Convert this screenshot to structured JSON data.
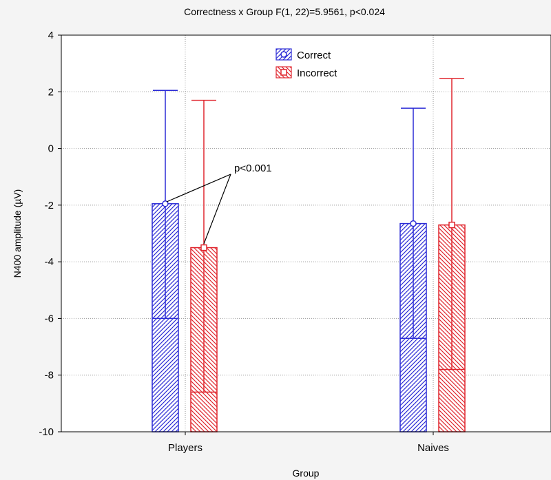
{
  "chart_data": {
    "type": "bar",
    "title": "Correctness x Group  F(1, 22)=5.9561, p<0.024",
    "xlabel": "Group",
    "ylabel": "N400 amplitude (µV)",
    "ylim": [
      -10,
      4
    ],
    "yticks": [
      "4",
      "2",
      "0",
      "-2",
      "-4",
      "-6",
      "-8",
      "-10"
    ],
    "ytick_values": [
      4,
      2,
      0,
      -2,
      -4,
      -6,
      -8,
      -10
    ],
    "categories": [
      "Players",
      "Naives"
    ],
    "grid": true,
    "legend_position": "top",
    "series": [
      {
        "name": "Correct",
        "color": "#2b2bd6",
        "marker": "circle",
        "values": [
          -1.95,
          -2.65
        ],
        "error_upper": [
          2.05,
          1.42
        ],
        "box_lower": [
          -6.0,
          -6.7
        ]
      },
      {
        "name": "Incorrect",
        "color": "#e0262e",
        "marker": "square",
        "values": [
          -3.5,
          -2.7
        ],
        "error_upper": [
          1.7,
          2.47
        ],
        "box_lower": [
          -8.6,
          -7.8
        ]
      }
    ],
    "annotation": {
      "text": "p<0.001"
    }
  }
}
